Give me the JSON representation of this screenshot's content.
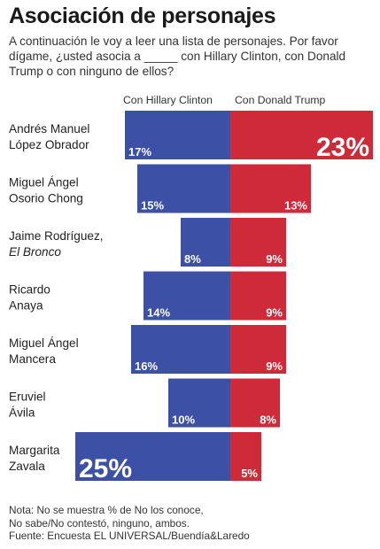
{
  "title": "Asociación de personajes",
  "question": "A continuación le voy a leer una lista de personajes. Por favor dígame, ¿usted asocia a _____ con Hillary Clinton, con Donald Trump o con ninguno de ellos?",
  "colors": {
    "clinton": "#3c50a6",
    "trump": "#cf2a3a",
    "label": "#ffffff"
  },
  "chart_data": {
    "type": "bar",
    "orientation": "diverging-horizontal",
    "categories": [
      {
        "line1": "Andrés Manuel",
        "line2": "López Obrador",
        "line2_italic": false
      },
      {
        "line1": "Miguel Ángel",
        "line2": "Osorio Chong",
        "line2_italic": false
      },
      {
        "line1": "Jaime Rodríguez,",
        "line2": "El Bronco",
        "line2_italic": true
      },
      {
        "line1": "Ricardo",
        "line2": "Anaya",
        "line2_italic": false
      },
      {
        "line1": "Miguel Ángel",
        "line2": "Mancera",
        "line2_italic": false
      },
      {
        "line1": "Eruviel",
        "line2": "Ávila",
        "line2_italic": false
      },
      {
        "line1": "Margarita",
        "line2": "Zavala",
        "line2_italic": false
      }
    ],
    "series": [
      {
        "name": "Con Hillary Clinton",
        "values": [
          17,
          15,
          8,
          14,
          16,
          10,
          25
        ],
        "labels": [
          "17%",
          "15%",
          "8%",
          "14%",
          "16%",
          "10%",
          "25%"
        ]
      },
      {
        "name": "Con Donald Trump",
        "values": [
          23,
          13,
          9,
          9,
          9,
          8,
          5
        ],
        "labels": [
          "23%",
          "13%",
          "9%",
          "9%",
          "9%",
          "8%",
          "5%"
        ]
      }
    ],
    "unit": "%"
  },
  "notes": [
    "Nota: No se muestra % de No los conoce,",
    "No sabe/No contestó, ninguno, ambos.",
    "Fuente: Encuesta EL UNIVERSAL/Buendía&Laredo"
  ]
}
